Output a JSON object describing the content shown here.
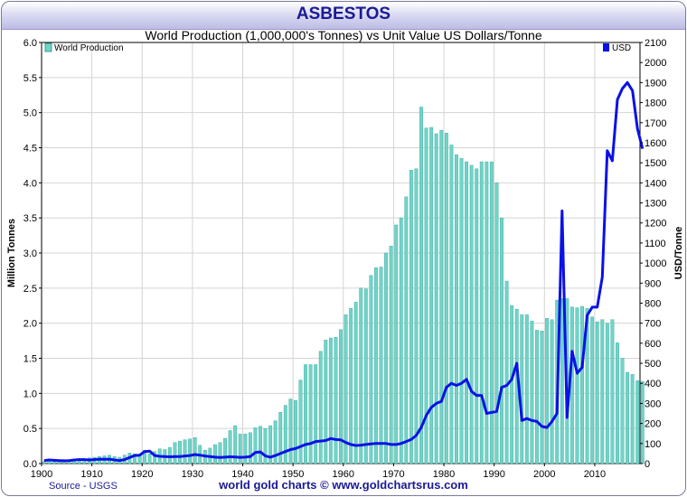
{
  "header": {
    "title": "ASBESTOS",
    "subtitle": "World Production (1,000,000's Tonnes) vs Unit Value US Dollars/Tonne"
  },
  "footer": {
    "source": "Source - USGS",
    "credit": "world gold charts © www.goldchartsrus.com"
  },
  "colors": {
    "bars": "#6fd4c8",
    "bar_edge": "#3aa89a",
    "line": "#0a12e6",
    "grid": "#d4d4d4",
    "title": "#1a1a96"
  },
  "chart_data": {
    "type": "bar",
    "x_label": "",
    "xlim": [
      1900,
      2019
    ],
    "x_ticks": [
      "1900",
      "1910",
      "1920",
      "1930",
      "1940",
      "1950",
      "1960",
      "1970",
      "1980",
      "1990",
      "2000",
      "2010"
    ],
    "left_axis": {
      "label": "Million Tonnes",
      "ylim": [
        0,
        6
      ],
      "ticks": [
        "0.0",
        "0.5",
        "1.0",
        "1.5",
        "2.0",
        "2.5",
        "3.0",
        "3.5",
        "4.0",
        "4.5",
        "5.0",
        "5.5",
        "6.0"
      ]
    },
    "right_axis": {
      "label": "USD/Tonne",
      "ylim": [
        0,
        2100
      ],
      "ticks": [
        "0",
        "100",
        "200",
        "300",
        "400",
        "500",
        "600",
        "700",
        "800",
        "900",
        "1000",
        "1100",
        "1200",
        "1300",
        "1400",
        "1500",
        "1600",
        "1700",
        "1800",
        "1900",
        "2000",
        "2100"
      ]
    },
    "legend": [
      "World Production",
      "USD"
    ],
    "series": [
      {
        "name": "World Production",
        "type": "bar",
        "axis": "left",
        "x": [
          1900,
          1901,
          1902,
          1903,
          1904,
          1905,
          1906,
          1907,
          1908,
          1909,
          1910,
          1911,
          1912,
          1913,
          1914,
          1915,
          1916,
          1917,
          1918,
          1919,
          1920,
          1921,
          1922,
          1923,
          1924,
          1925,
          1926,
          1927,
          1928,
          1929,
          1930,
          1931,
          1932,
          1933,
          1934,
          1935,
          1936,
          1937,
          1938,
          1939,
          1940,
          1941,
          1942,
          1943,
          1944,
          1945,
          1946,
          1947,
          1948,
          1949,
          1950,
          1951,
          1952,
          1953,
          1954,
          1955,
          1956,
          1957,
          1958,
          1959,
          1960,
          1961,
          1962,
          1963,
          1964,
          1965,
          1966,
          1967,
          1968,
          1969,
          1970,
          1971,
          1972,
          1973,
          1974,
          1975,
          1976,
          1977,
          1978,
          1979,
          1980,
          1981,
          1982,
          1983,
          1984,
          1985,
          1986,
          1987,
          1988,
          1989,
          1990,
          1991,
          1992,
          1993,
          1994,
          1995,
          1996,
          1997,
          1998,
          1999,
          2000,
          2001,
          2002,
          2003,
          2004,
          2005,
          2006,
          2007,
          2008,
          2009,
          2010,
          2011,
          2012,
          2013,
          2014,
          2015,
          2016,
          2017,
          2018,
          2019
        ],
        "values": [
          0.03,
          0.04,
          0.04,
          0.04,
          0.05,
          0.05,
          0.06,
          0.07,
          0.07,
          0.08,
          0.09,
          0.1,
          0.11,
          0.12,
          0.1,
          0.09,
          0.12,
          0.15,
          0.14,
          0.12,
          0.19,
          0.14,
          0.17,
          0.21,
          0.2,
          0.23,
          0.3,
          0.32,
          0.34,
          0.35,
          0.37,
          0.26,
          0.19,
          0.22,
          0.27,
          0.3,
          0.36,
          0.47,
          0.54,
          0.42,
          0.42,
          0.44,
          0.51,
          0.53,
          0.5,
          0.54,
          0.61,
          0.73,
          0.83,
          0.92,
          0.9,
          1.19,
          1.41,
          1.41,
          1.41,
          1.6,
          1.76,
          1.79,
          1.8,
          1.91,
          2.12,
          2.21,
          2.3,
          2.5,
          2.49,
          2.68,
          2.79,
          2.8,
          3.0,
          3.1,
          3.4,
          3.5,
          3.8,
          4.18,
          4.2,
          5.08,
          4.78,
          4.79,
          4.7,
          4.75,
          4.71,
          4.54,
          4.4,
          4.35,
          4.3,
          4.25,
          4.2,
          4.3,
          4.3,
          4.3,
          4.0,
          3.5,
          2.6,
          2.25,
          2.2,
          2.12,
          2.12,
          2.03,
          1.9,
          1.89,
          2.07,
          2.05,
          2.33,
          2.35,
          2.35,
          2.23,
          2.22,
          2.24,
          2.21,
          2.09,
          2.02,
          2.05,
          2.0,
          2.05,
          1.72,
          1.5,
          1.3,
          1.27,
          1.18,
          1.17
        ]
      },
      {
        "name": "USD",
        "type": "line",
        "axis": "right",
        "x": [
          1900,
          1901,
          1902,
          1903,
          1904,
          1905,
          1906,
          1907,
          1908,
          1909,
          1910,
          1911,
          1912,
          1913,
          1914,
          1915,
          1916,
          1917,
          1918,
          1919,
          1920,
          1921,
          1922,
          1923,
          1924,
          1925,
          1926,
          1927,
          1928,
          1929,
          1930,
          1931,
          1932,
          1933,
          1934,
          1935,
          1936,
          1937,
          1938,
          1939,
          1940,
          1941,
          1942,
          1943,
          1944,
          1945,
          1946,
          1947,
          1948,
          1949,
          1950,
          1951,
          1952,
          1953,
          1954,
          1955,
          1956,
          1957,
          1958,
          1959,
          1960,
          1961,
          1962,
          1963,
          1964,
          1965,
          1966,
          1967,
          1968,
          1969,
          1970,
          1971,
          1972,
          1973,
          1974,
          1975,
          1976,
          1977,
          1978,
          1979,
          1980,
          1981,
          1982,
          1983,
          1984,
          1985,
          1986,
          1987,
          1988,
          1989,
          1990,
          1991,
          1992,
          1993,
          1994,
          1995,
          1996,
          1997,
          1998,
          1999,
          2000,
          2001,
          2002,
          2003,
          2004,
          2005,
          2006,
          2007,
          2008,
          2009,
          2010,
          2011,
          2012,
          2013,
          2014,
          2015,
          2016,
          2017,
          2018,
          2019
        ],
        "values": [
          15,
          18,
          16,
          15,
          14,
          15,
          18,
          20,
          20,
          18,
          20,
          22,
          21,
          22,
          18,
          15,
          20,
          30,
          40,
          42,
          60,
          62,
          40,
          36,
          35,
          34,
          35,
          35,
          38,
          40,
          45,
          42,
          38,
          35,
          32,
          30,
          32,
          34,
          33,
          31,
          32,
          35,
          55,
          58,
          38,
          32,
          40,
          50,
          60,
          70,
          75,
          85,
          95,
          100,
          110,
          112,
          115,
          125,
          120,
          118,
          105,
          95,
          90,
          92,
          95,
          98,
          100,
          100,
          100,
          95,
          95,
          100,
          110,
          120,
          140,
          180,
          240,
          280,
          300,
          310,
          380,
          400,
          390,
          400,
          420,
          360,
          340,
          340,
          250,
          255,
          260,
          380,
          390,
          420,
          500,
          215,
          225,
          215,
          210,
          185,
          180,
          210,
          250,
          1260,
          230,
          560,
          450,
          480,
          740,
          780,
          780,
          930,
          1560,
          1510,
          1815,
          1870,
          1900,
          1860,
          1670,
          1570
        ]
      }
    ]
  }
}
